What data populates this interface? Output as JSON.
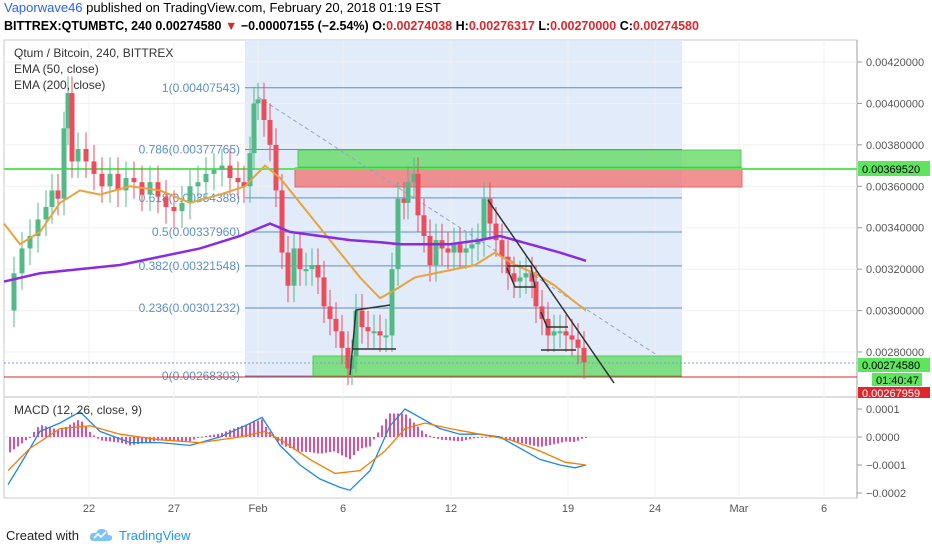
{
  "header": {
    "author": "Vaporwave46",
    "published_text": "published on TradingView.com, February 20, 2018 01:19 EST",
    "symbol_line": "BITTREX:QTUMBTC, 240",
    "last": "0.00274580",
    "change_arrow": "▼",
    "change": "−0.00007155 (−2.54%)",
    "o_label": "O:",
    "o": "0.00274038",
    "h_label": "H:",
    "h": "0.00276317",
    "l_label": "L:",
    "l": "0.00270000",
    "c_label": "C:",
    "c": "0.00274580"
  },
  "legend": {
    "title": "Qtum / Bitcoin, 240, BITTREX",
    "ema50": "EMA (50, close)",
    "ema200": "EMA (200, close)",
    "macd": "MACD (12, 26, close, 9)"
  },
  "price_axis": {
    "ticks": [
      "0.00420000",
      "0.00400000",
      "0.00380000",
      "0.00360000",
      "0.00340000",
      "0.00320000",
      "0.00300000",
      "0.00280000"
    ],
    "hline_label": "0.00369520",
    "last_price_label": "0.00274580",
    "countdown_label": "01:40:47",
    "low_label": "0.00267959"
  },
  "macd_axis": {
    "ticks": [
      "0.0001",
      "0.0000",
      "−0.0001",
      "−0.0002"
    ]
  },
  "time_axis": {
    "ticks": [
      "22",
      "27",
      "Feb",
      "6",
      "12",
      "19",
      "24",
      "Mar",
      "6"
    ]
  },
  "fib_labels": [
    "1(0.00407543)",
    "0.786(0.00377765)",
    "0.618(0.00354388)",
    "0.5(0.00337960)",
    "0.382(0.00321548)",
    "0.236(0.00301232)",
    "0(0.00268303)"
  ],
  "chart_data": {
    "type": "candlestick",
    "symbol": "BITTREX:QTUMBTC",
    "interval": "240",
    "x_labels": [
      "22",
      "27",
      "Feb",
      "6",
      "12",
      "19",
      "24",
      "Mar",
      "6"
    ],
    "price_range": [
      0.0026,
      0.0043
    ],
    "horizontal_line": 0.0036952,
    "fibonacci_retracement": {
      "levels": [
        1,
        0.786,
        0.618,
        0.5,
        0.382,
        0.236,
        0
      ],
      "prices": [
        0.00407543,
        0.00377765,
        0.00354388,
        0.0033796,
        0.00321548,
        0.00301232,
        0.00268303
      ]
    },
    "zones": [
      {
        "color": "green",
        "price_top": 0.00377765,
        "price_bottom": 0.0037
      },
      {
        "color": "red",
        "price_top": 0.0036952,
        "price_bottom": 0.0036
      },
      {
        "color": "green",
        "price_top": 0.00277,
        "price_bottom": 0.00269
      }
    ],
    "ohlc_last": {
      "open": 0.00274038,
      "high": 0.00276317,
      "low": 0.0027,
      "close": 0.0027458
    },
    "macd_range": [
      -0.00024,
      0.00012
    ],
    "colors": {
      "up": "#53b987",
      "down": "#eb4d5c",
      "ema50": "#e8a33c",
      "ema200": "#8a2be2",
      "macd": "#1e88e5",
      "signal": "#f57c00",
      "hist": "#e04e9c",
      "fib": "#5d8fc9",
      "zone_green": "#6fdc6f",
      "zone_red": "#f08080",
      "hline": "#5de65d"
    }
  },
  "footer": {
    "created": "Created with",
    "brand": "TradingView"
  }
}
